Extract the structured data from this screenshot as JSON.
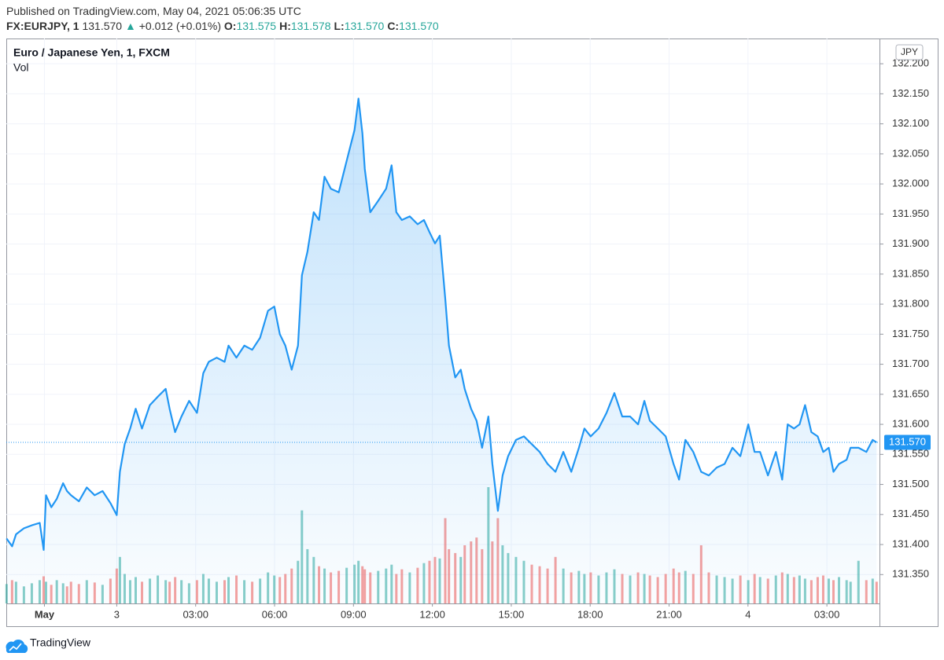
{
  "header": {
    "published": "Published on TradingView.com, May 04, 2021 05:06:35 UTC",
    "symbol": "FX:EURJPY, 1",
    "price": "131.570",
    "arrow": "▲",
    "change": "+0.012 (+0.01%)",
    "ohlc": [
      {
        "label": "O:",
        "value": "131.575"
      },
      {
        "label": "H:",
        "value": "131.578"
      },
      {
        "label": "L:",
        "value": "131.570"
      },
      {
        "label": "C:",
        "value": "131.570"
      }
    ]
  },
  "chart_data": {
    "type": "line",
    "title": "Euro / Japanese Yen, 1, FXCM",
    "volume_label": "Vol",
    "currency": "JPY",
    "x": [
      -4.19,
      -3.98,
      -3.83,
      -3.53,
      -3.23,
      -2.93,
      -2.78,
      -2.69,
      -2.49,
      -2.28,
      -2.04,
      -1.89,
      -1.74,
      -1.44,
      -1.14,
      -0.84,
      -0.54,
      -0.24,
      0,
      0.12,
      0.3,
      0.51,
      0.72,
      0.96,
      1.26,
      1.56,
      1.86,
      2.01,
      2.22,
      2.46,
      2.75,
      3.05,
      3.29,
      3.5,
      3.8,
      4.1,
      4.25,
      4.55,
      4.85,
      5.15,
      5.45,
      5.75,
      5.99,
      6.2,
      6.41,
      6.65,
      6.89,
      7.04,
      7.25,
      7.49,
      7.69,
      7.9,
      8.14,
      8.44,
      8.74,
      9.04,
      9.19,
      9.34,
      9.43,
      9.64,
      9.94,
      10.24,
      10.45,
      10.63,
      10.84,
      11.14,
      11.44,
      11.68,
      11.89,
      12.1,
      12.28,
      12.49,
      12.63,
      12.87,
      13.08,
      13.23,
      13.47,
      13.68,
      13.89,
      14.13,
      14.28,
      14.49,
      14.67,
      14.88,
      15.18,
      15.48,
      15.78,
      16.08,
      16.38,
      16.68,
      16.98,
      17.28,
      17.57,
      17.78,
      18.02,
      18.32,
      18.62,
      18.92,
      19.22,
      19.52,
      19.82,
      20.06,
      20.27,
      20.57,
      20.87,
      21.17,
      21.38,
      21.62,
      21.92,
      22.22,
      22.51,
      22.81,
      23.11,
      23.41,
      23.71,
      24.01,
      24.25,
      24.46,
      24.76,
      25.06,
      25.3,
      25.51,
      25.75,
      25.96,
      26.17,
      26.41,
      26.65,
      26.86,
      27.07,
      27.25,
      27.46,
      27.75,
      27.9,
      28.2,
      28.5,
      28.74,
      28.89
    ],
    "series": [
      {
        "name": "EURJPY",
        "color": "#2196f3",
        "values": [
          131.41,
          131.397,
          131.417,
          131.427,
          131.432,
          131.436,
          131.391,
          131.482,
          131.462,
          131.476,
          131.502,
          131.489,
          131.482,
          131.472,
          131.495,
          131.482,
          131.489,
          131.469,
          131.449,
          131.521,
          131.567,
          131.593,
          131.626,
          131.593,
          131.632,
          131.646,
          131.659,
          131.626,
          131.587,
          131.613,
          131.639,
          131.619,
          131.685,
          131.704,
          131.711,
          131.704,
          131.731,
          131.711,
          131.731,
          131.724,
          131.744,
          131.789,
          131.796,
          131.75,
          131.731,
          131.691,
          131.731,
          131.848,
          131.887,
          131.953,
          131.94,
          132.012,
          131.992,
          131.986,
          132.038,
          132.09,
          132.142,
          132.084,
          132.025,
          131.953,
          131.972,
          131.992,
          132.031,
          131.953,
          131.94,
          131.946,
          131.933,
          131.94,
          131.92,
          131.901,
          131.914,
          131.809,
          131.731,
          131.678,
          131.691,
          131.659,
          131.626,
          131.606,
          131.561,
          131.613,
          131.534,
          131.456,
          131.515,
          131.547,
          131.574,
          131.58,
          131.567,
          131.554,
          131.534,
          131.521,
          131.554,
          131.521,
          131.561,
          131.593,
          131.58,
          131.593,
          131.619,
          131.652,
          131.613,
          131.613,
          131.6,
          131.639,
          131.606,
          131.593,
          131.58,
          131.534,
          131.508,
          131.574,
          131.554,
          131.521,
          131.515,
          131.528,
          131.534,
          131.561,
          131.547,
          131.6,
          131.554,
          131.554,
          131.515,
          131.554,
          131.508,
          131.6,
          131.593,
          131.6,
          131.632,
          131.587,
          131.58,
          131.554,
          131.561,
          131.521,
          131.534,
          131.541,
          131.561,
          131.561,
          131.554,
          131.574,
          131.57
        ]
      }
    ],
    "last_label": "131.570",
    "volume": {
      "up_color": "#26a69a",
      "down_color": "#ef5350",
      "values": [
        25,
        30,
        28,
        22,
        26,
        30,
        35,
        28,
        24,
        30,
        26,
        22,
        28,
        25,
        30,
        27,
        24,
        32,
        45,
        60,
        38,
        30,
        34,
        28,
        32,
        36,
        30,
        28,
        34,
        30,
        26,
        30,
        38,
        32,
        28,
        30,
        34,
        36,
        30,
        28,
        32,
        40,
        36,
        34,
        38,
        45,
        55,
        120,
        70,
        60,
        48,
        45,
        40,
        42,
        46,
        50,
        55,
        48,
        44,
        40,
        42,
        45,
        50,
        38,
        44,
        40,
        46,
        52,
        55,
        60,
        58,
        110,
        70,
        65,
        60,
        75,
        80,
        85,
        70,
        150,
        80,
        110,
        75,
        65,
        60,
        55,
        50,
        48,
        45,
        60,
        45,
        40,
        42,
        38,
        40,
        36,
        40,
        44,
        38,
        36,
        40,
        38,
        36,
        34,
        38,
        45,
        40,
        42,
        38,
        75,
        40,
        36,
        34,
        32,
        36,
        30,
        38,
        34,
        32,
        36,
        40,
        38,
        34,
        36,
        32,
        30,
        34,
        36,
        32,
        30,
        34,
        30,
        28,
        55,
        30,
        32,
        28
      ]
    },
    "xlim": [
      -4.2,
      29.0
    ],
    "xticks": [
      {
        "value": -2.75,
        "label": "May"
      },
      {
        "value": 0,
        "label": "3"
      },
      {
        "value": 3,
        "label": "03:00"
      },
      {
        "value": 6,
        "label": "06:00"
      },
      {
        "value": 9,
        "label": "09:00"
      },
      {
        "value": 12,
        "label": "12:00"
      },
      {
        "value": 15,
        "label": "15:00"
      },
      {
        "value": 18,
        "label": "18:00"
      },
      {
        "value": 21,
        "label": "21:00"
      },
      {
        "value": 24,
        "label": "4"
      },
      {
        "value": 27,
        "label": "03:00"
      }
    ],
    "ylim": [
      131.302,
      132.242
    ],
    "yticks": [
      {
        "value": 131.35,
        "label": "131.350"
      },
      {
        "value": 131.4,
        "label": "131.400"
      },
      {
        "value": 131.45,
        "label": "131.450"
      },
      {
        "value": 131.5,
        "label": "131.500"
      },
      {
        "value": 131.55,
        "label": "131.550"
      },
      {
        "value": 131.6,
        "label": "131.600"
      },
      {
        "value": 131.65,
        "label": "131.650"
      },
      {
        "value": 131.7,
        "label": "131.700"
      },
      {
        "value": 131.75,
        "label": "131.750"
      },
      {
        "value": 131.8,
        "label": "131.800"
      },
      {
        "value": 131.85,
        "label": "131.850"
      },
      {
        "value": 131.9,
        "label": "131.900"
      },
      {
        "value": 131.95,
        "label": "131.950"
      },
      {
        "value": 132.0,
        "label": "132.000"
      },
      {
        "value": 132.05,
        "label": "132.050"
      },
      {
        "value": 132.1,
        "label": "132.100"
      },
      {
        "value": 132.15,
        "label": "132.150"
      },
      {
        "value": 132.2,
        "label": "132.200"
      }
    ],
    "grid": true
  },
  "footer": {
    "brand": "TradingView"
  }
}
